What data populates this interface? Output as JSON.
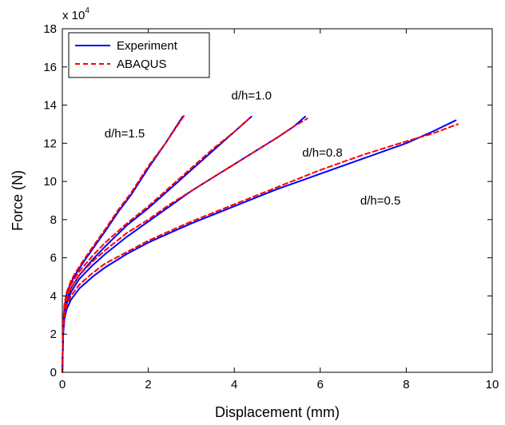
{
  "chart_data": {
    "type": "line",
    "title": "",
    "xlabel": "Displacement (mm)",
    "ylabel": "Force (N)",
    "y_multiplier": "x 10",
    "y_multiplier_exp": "4",
    "xlim": [
      0,
      10
    ],
    "ylim": [
      0,
      18
    ],
    "xticks": [
      0,
      2,
      4,
      6,
      8,
      10
    ],
    "yticks": [
      0,
      2,
      4,
      6,
      8,
      10,
      12,
      14,
      16,
      18
    ],
    "grid": false,
    "legend_position": "top-left",
    "legend": [
      {
        "label": "Experiment",
        "color": "#0000ff",
        "style": "solid"
      },
      {
        "label": "ABAQUS",
        "color": "#ff0000",
        "style": "dashed"
      }
    ],
    "annotations": [
      {
        "text": "d/h=1.5",
        "x": 1.45,
        "y": 12.3
      },
      {
        "text": "d/h=1.0",
        "x": 4.4,
        "y": 14.3
      },
      {
        "text": "d/h=0.8",
        "x": 6.05,
        "y": 11.3
      },
      {
        "text": "d/h=0.5",
        "x": 7.4,
        "y": 8.8
      }
    ],
    "series": [
      {
        "curve": "d/h=1.5",
        "source": "Experiment",
        "color": "#0000ff",
        "dash": false,
        "x": [
          0,
          0.02,
          0.05,
          0.1,
          0.2,
          0.3,
          0.5,
          0.75,
          1.0,
          1.3,
          1.6,
          2.0,
          2.4,
          2.8
        ],
        "y": [
          0,
          2.5,
          3.4,
          4.1,
          4.7,
          5.1,
          5.8,
          6.6,
          7.4,
          8.4,
          9.3,
          10.7,
          12.0,
          13.4
        ]
      },
      {
        "curve": "d/h=1.5",
        "source": "ABAQUS",
        "color": "#ff0000",
        "dash": true,
        "x": [
          0,
          0.02,
          0.05,
          0.1,
          0.2,
          0.3,
          0.5,
          0.75,
          1.0,
          1.3,
          1.6,
          2.0,
          2.4,
          2.85
        ],
        "y": [
          0,
          2.7,
          3.6,
          4.2,
          4.8,
          5.2,
          5.9,
          6.7,
          7.5,
          8.5,
          9.4,
          10.8,
          12.0,
          13.5
        ]
      },
      {
        "curve": "d/h=1.0",
        "source": "Experiment",
        "color": "#0000ff",
        "dash": false,
        "x": [
          0,
          0.02,
          0.05,
          0.1,
          0.2,
          0.4,
          0.7,
          1.0,
          1.5,
          2.0,
          2.5,
          3.0,
          3.5,
          4.0,
          4.4
        ],
        "y": [
          0,
          2.3,
          3.2,
          3.8,
          4.4,
          5.1,
          5.9,
          6.6,
          7.7,
          8.6,
          9.6,
          10.6,
          11.6,
          12.6,
          13.4
        ]
      },
      {
        "curve": "d/h=1.0",
        "source": "ABAQUS",
        "color": "#ff0000",
        "dash": true,
        "x": [
          0,
          0.02,
          0.05,
          0.1,
          0.2,
          0.4,
          0.7,
          1.0,
          1.5,
          2.0,
          2.5,
          3.0,
          3.5,
          4.0,
          4.35
        ],
        "y": [
          0,
          2.5,
          3.4,
          4.0,
          4.6,
          5.3,
          6.1,
          6.8,
          7.8,
          8.7,
          9.7,
          10.7,
          11.7,
          12.6,
          13.3
        ]
      },
      {
        "curve": "d/h=0.8",
        "source": "Experiment",
        "color": "#0000ff",
        "dash": false,
        "x": [
          0,
          0.02,
          0.05,
          0.1,
          0.2,
          0.4,
          0.7,
          1.0,
          1.5,
          2.0,
          2.5,
          3.0,
          3.5,
          4.0,
          4.5,
          5.0,
          5.4,
          5.65
        ],
        "y": [
          0,
          2.2,
          3.0,
          3.6,
          4.2,
          4.9,
          5.6,
          6.2,
          7.1,
          7.9,
          8.7,
          9.5,
          10.2,
          10.9,
          11.6,
          12.3,
          12.9,
          13.4
        ]
      },
      {
        "curve": "d/h=0.8",
        "source": "ABAQUS",
        "color": "#ff0000",
        "dash": true,
        "x": [
          0,
          0.02,
          0.05,
          0.1,
          0.2,
          0.4,
          0.7,
          1.0,
          1.5,
          2.0,
          2.5,
          3.0,
          3.5,
          4.0,
          4.5,
          5.0,
          5.4,
          5.7
        ],
        "y": [
          0,
          2.4,
          3.2,
          3.8,
          4.4,
          5.1,
          5.8,
          6.4,
          7.3,
          8.0,
          8.8,
          9.5,
          10.2,
          10.9,
          11.6,
          12.3,
          12.9,
          13.3
        ]
      },
      {
        "curve": "d/h=0.5",
        "source": "Experiment",
        "color": "#0000ff",
        "dash": false,
        "x": [
          0,
          0.02,
          0.05,
          0.1,
          0.2,
          0.4,
          0.7,
          1.0,
          1.5,
          2.0,
          2.5,
          3.0,
          4.0,
          5.0,
          6.0,
          7.0,
          8.0,
          8.6,
          9.15
        ],
        "y": [
          0,
          2.0,
          2.8,
          3.3,
          3.8,
          4.4,
          5.0,
          5.5,
          6.2,
          6.8,
          7.3,
          7.8,
          8.7,
          9.6,
          10.4,
          11.2,
          12.0,
          12.6,
          13.2
        ]
      },
      {
        "curve": "d/h=0.5",
        "source": "ABAQUS",
        "color": "#ff0000",
        "dash": true,
        "x": [
          0,
          0.02,
          0.05,
          0.1,
          0.2,
          0.4,
          0.7,
          1.0,
          1.5,
          2.0,
          2.5,
          3.0,
          4.0,
          5.0,
          6.0,
          7.0,
          8.0,
          8.6,
          9.2
        ],
        "y": [
          0,
          2.2,
          3.0,
          3.5,
          4.0,
          4.6,
          5.2,
          5.7,
          6.3,
          6.9,
          7.4,
          7.9,
          8.8,
          9.7,
          10.6,
          11.4,
          12.1,
          12.5,
          13.0
        ]
      }
    ]
  }
}
